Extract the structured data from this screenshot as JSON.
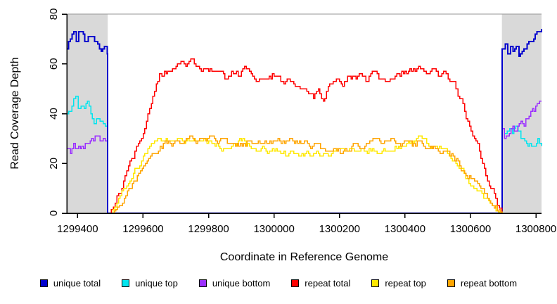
{
  "chart_data": {
    "type": "line",
    "title": "",
    "xlabel": "Coordinate in Reference Genome",
    "ylabel": "Read Coverage Depth",
    "xlim": [
      1299367,
      1300817
    ],
    "ylim": [
      0,
      80
    ],
    "x_ticks": [
      1299400,
      1299600,
      1299800,
      1300000,
      1300200,
      1300400,
      1300600,
      1300800
    ],
    "y_ticks": [
      0,
      20,
      40,
      60,
      80
    ],
    "grid": false,
    "legend_position": "bottom",
    "plot_background": "#ffffff",
    "shaded_region_color": "#d9d9d9",
    "top_rule_color": "#969696",
    "axis_color": "#000000",
    "shaded_regions": [
      {
        "x0": 1299367,
        "x1": 1299492
      },
      {
        "x0": 1300696,
        "x1": 1300817
      }
    ],
    "series": [
      {
        "name": "unique total",
        "color": "#0000CD",
        "jitter": 2,
        "points": [
          [
            1299367,
            66
          ],
          [
            1299378,
            71
          ],
          [
            1299388,
            73
          ],
          [
            1299396,
            70
          ],
          [
            1299404,
            73
          ],
          [
            1299412,
            72
          ],
          [
            1299422,
            68
          ],
          [
            1299432,
            70
          ],
          [
            1299442,
            70
          ],
          [
            1299452,
            67
          ],
          [
            1299462,
            68
          ],
          [
            1299472,
            66
          ],
          [
            1299482,
            67
          ],
          [
            1299491,
            65
          ],
          [
            1299492,
            0
          ],
          [
            1300696,
            0
          ],
          [
            1300697,
            66
          ],
          [
            1300706,
            69
          ],
          [
            1300714,
            66
          ],
          [
            1300722,
            69
          ],
          [
            1300730,
            67
          ],
          [
            1300740,
            69
          ],
          [
            1300748,
            64
          ],
          [
            1300758,
            66
          ],
          [
            1300768,
            68
          ],
          [
            1300778,
            71
          ],
          [
            1300788,
            70
          ],
          [
            1300798,
            72
          ],
          [
            1300808,
            73
          ],
          [
            1300817,
            75
          ]
        ]
      },
      {
        "name": "unique top",
        "color": "#00E5EE",
        "jitter": 2,
        "points": [
          [
            1299367,
            40
          ],
          [
            1299378,
            43
          ],
          [
            1299388,
            47
          ],
          [
            1299394,
            48
          ],
          [
            1299402,
            44
          ],
          [
            1299410,
            45
          ],
          [
            1299420,
            43
          ],
          [
            1299430,
            44
          ],
          [
            1299440,
            41
          ],
          [
            1299450,
            38
          ],
          [
            1299458,
            39
          ],
          [
            1299468,
            36
          ],
          [
            1299478,
            37
          ],
          [
            1299491,
            33
          ],
          [
            1299492,
            0
          ],
          [
            1300696,
            0
          ],
          [
            1300697,
            34
          ],
          [
            1300704,
            31
          ],
          [
            1300712,
            33
          ],
          [
            1300720,
            35
          ],
          [
            1300728,
            32
          ],
          [
            1300738,
            34
          ],
          [
            1300746,
            31
          ],
          [
            1300754,
            28
          ],
          [
            1300766,
            29
          ],
          [
            1300776,
            28
          ],
          [
            1300786,
            29
          ],
          [
            1300796,
            28
          ],
          [
            1300806,
            30
          ],
          [
            1300817,
            28
          ]
        ]
      },
      {
        "name": "unique bottom",
        "color": "#9B30FF",
        "jitter": 1,
        "points": [
          [
            1299367,
            26
          ],
          [
            1299378,
            25
          ],
          [
            1299388,
            27
          ],
          [
            1299398,
            25
          ],
          [
            1299408,
            26
          ],
          [
            1299418,
            26
          ],
          [
            1299428,
            28
          ],
          [
            1299438,
            28
          ],
          [
            1299448,
            29
          ],
          [
            1299458,
            30
          ],
          [
            1299468,
            29
          ],
          [
            1299478,
            31
          ],
          [
            1299491,
            29
          ],
          [
            1299492,
            0
          ],
          [
            1300696,
            0
          ],
          [
            1300697,
            34
          ],
          [
            1300704,
            31
          ],
          [
            1300714,
            32
          ],
          [
            1300724,
            34
          ],
          [
            1300734,
            33
          ],
          [
            1300744,
            35
          ],
          [
            1300754,
            37
          ],
          [
            1300764,
            36
          ],
          [
            1300774,
            39
          ],
          [
            1300784,
            41
          ],
          [
            1300794,
            40
          ],
          [
            1300804,
            43
          ],
          [
            1300817,
            45
          ]
        ]
      },
      {
        "name": "repeat total",
        "color": "#FF0000",
        "jitter": 1,
        "points": [
          [
            1299367,
            0
          ],
          [
            1299497,
            0
          ],
          [
            1299515,
            4
          ],
          [
            1299535,
            11
          ],
          [
            1299555,
            18
          ],
          [
            1299575,
            25
          ],
          [
            1299595,
            31
          ],
          [
            1299615,
            39
          ],
          [
            1299635,
            48
          ],
          [
            1299650,
            56
          ],
          [
            1299657,
            54
          ],
          [
            1299665,
            57
          ],
          [
            1299685,
            58
          ],
          [
            1299705,
            59
          ],
          [
            1299725,
            60
          ],
          [
            1299745,
            61
          ],
          [
            1299762,
            60
          ],
          [
            1299778,
            58
          ],
          [
            1299795,
            57
          ],
          [
            1299815,
            56
          ],
          [
            1299835,
            56
          ],
          [
            1299855,
            55
          ],
          [
            1299875,
            57
          ],
          [
            1299895,
            56
          ],
          [
            1299910,
            58
          ],
          [
            1299925,
            56
          ],
          [
            1299945,
            54
          ],
          [
            1299965,
            55
          ],
          [
            1299985,
            55
          ],
          [
            1300005,
            56
          ],
          [
            1300025,
            52
          ],
          [
            1300045,
            53
          ],
          [
            1300065,
            50
          ],
          [
            1300085,
            49
          ],
          [
            1300105,
            48
          ],
          [
            1300120,
            46
          ],
          [
            1300135,
            49
          ],
          [
            1300150,
            46
          ],
          [
            1300165,
            50
          ],
          [
            1300180,
            52
          ],
          [
            1300195,
            53
          ],
          [
            1300210,
            52
          ],
          [
            1300225,
            54
          ],
          [
            1300245,
            54
          ],
          [
            1300265,
            55
          ],
          [
            1300285,
            54
          ],
          [
            1300305,
            56
          ],
          [
            1300325,
            55
          ],
          [
            1300345,
            54
          ],
          [
            1300365,
            55
          ],
          [
            1300385,
            55
          ],
          [
            1300405,
            57
          ],
          [
            1300425,
            58
          ],
          [
            1300442,
            59
          ],
          [
            1300458,
            58
          ],
          [
            1300472,
            56
          ],
          [
            1300488,
            57
          ],
          [
            1300502,
            56
          ],
          [
            1300518,
            57
          ],
          [
            1300532,
            55
          ],
          [
            1300548,
            53
          ],
          [
            1300562,
            48
          ],
          [
            1300582,
            41
          ],
          [
            1300602,
            34
          ],
          [
            1300622,
            27
          ],
          [
            1300642,
            18
          ],
          [
            1300662,
            10
          ],
          [
            1300682,
            4
          ],
          [
            1300696,
            0
          ],
          [
            1300817,
            0
          ]
        ]
      },
      {
        "name": "repeat top",
        "color": "#FFE800",
        "jitter": 1,
        "points": [
          [
            1299367,
            0
          ],
          [
            1299502,
            0
          ],
          [
            1299520,
            4
          ],
          [
            1299540,
            9
          ],
          [
            1299560,
            14
          ],
          [
            1299580,
            18
          ],
          [
            1299600,
            22
          ],
          [
            1299620,
            26
          ],
          [
            1299640,
            29
          ],
          [
            1299660,
            29
          ],
          [
            1299680,
            30
          ],
          [
            1299700,
            30
          ],
          [
            1299720,
            29
          ],
          [
            1299740,
            30
          ],
          [
            1299760,
            30
          ],
          [
            1299780,
            29
          ],
          [
            1299800,
            28
          ],
          [
            1299820,
            27
          ],
          [
            1299840,
            26
          ],
          [
            1299860,
            27
          ],
          [
            1299880,
            28
          ],
          [
            1299900,
            29
          ],
          [
            1299920,
            28
          ],
          [
            1299940,
            26
          ],
          [
            1299960,
            26
          ],
          [
            1299980,
            25
          ],
          [
            1300000,
            26
          ],
          [
            1300020,
            25
          ],
          [
            1300040,
            24
          ],
          [
            1300060,
            25
          ],
          [
            1300080,
            24
          ],
          [
            1300100,
            24
          ],
          [
            1300120,
            23
          ],
          [
            1300140,
            24
          ],
          [
            1300160,
            23
          ],
          [
            1300180,
            24
          ],
          [
            1300200,
            25
          ],
          [
            1300220,
            26
          ],
          [
            1300240,
            25
          ],
          [
            1300260,
            26
          ],
          [
            1300280,
            25
          ],
          [
            1300300,
            26
          ],
          [
            1300320,
            25
          ],
          [
            1300340,
            26
          ],
          [
            1300360,
            26
          ],
          [
            1300380,
            27
          ],
          [
            1300400,
            28
          ],
          [
            1300420,
            29
          ],
          [
            1300440,
            30
          ],
          [
            1300452,
            30
          ],
          [
            1300466,
            28
          ],
          [
            1300480,
            27
          ],
          [
            1300500,
            26
          ],
          [
            1300520,
            25
          ],
          [
            1300540,
            23
          ],
          [
            1300560,
            20
          ],
          [
            1300580,
            16
          ],
          [
            1300600,
            12
          ],
          [
            1300620,
            9
          ],
          [
            1300640,
            6
          ],
          [
            1300660,
            3
          ],
          [
            1300678,
            1
          ],
          [
            1300692,
            0
          ],
          [
            1300817,
            0
          ]
        ]
      },
      {
        "name": "repeat bottom",
        "color": "#FFA500",
        "jitter": 1,
        "points": [
          [
            1299367,
            0
          ],
          [
            1299507,
            0
          ],
          [
            1299527,
            3
          ],
          [
            1299547,
            7
          ],
          [
            1299567,
            11
          ],
          [
            1299587,
            15
          ],
          [
            1299607,
            19
          ],
          [
            1299627,
            23
          ],
          [
            1299647,
            26
          ],
          [
            1299667,
            28
          ],
          [
            1299687,
            28
          ],
          [
            1299707,
            29
          ],
          [
            1299727,
            29
          ],
          [
            1299747,
            30
          ],
          [
            1299767,
            29
          ],
          [
            1299787,
            29
          ],
          [
            1299807,
            30
          ],
          [
            1299827,
            29
          ],
          [
            1299847,
            29
          ],
          [
            1299867,
            27
          ],
          [
            1299887,
            27
          ],
          [
            1299907,
            27
          ],
          [
            1299927,
            28
          ],
          [
            1299947,
            29
          ],
          [
            1299967,
            29
          ],
          [
            1299987,
            29
          ],
          [
            1300007,
            30
          ],
          [
            1300027,
            29
          ],
          [
            1300047,
            30
          ],
          [
            1300067,
            29
          ],
          [
            1300087,
            28
          ],
          [
            1300107,
            27
          ],
          [
            1300127,
            27
          ],
          [
            1300147,
            26
          ],
          [
            1300167,
            26
          ],
          [
            1300187,
            26
          ],
          [
            1300207,
            25
          ],
          [
            1300227,
            26
          ],
          [
            1300247,
            27
          ],
          [
            1300267,
            27
          ],
          [
            1300287,
            28
          ],
          [
            1300307,
            29
          ],
          [
            1300327,
            28
          ],
          [
            1300347,
            28
          ],
          [
            1300367,
            29
          ],
          [
            1300387,
            28
          ],
          [
            1300407,
            28
          ],
          [
            1300427,
            27
          ],
          [
            1300447,
            28
          ],
          [
            1300467,
            27
          ],
          [
            1300487,
            26
          ],
          [
            1300507,
            25
          ],
          [
            1300527,
            24
          ],
          [
            1300547,
            22
          ],
          [
            1300567,
            19
          ],
          [
            1300587,
            16
          ],
          [
            1300607,
            13
          ],
          [
            1300627,
            10
          ],
          [
            1300647,
            7
          ],
          [
            1300667,
            4
          ],
          [
            1300682,
            2
          ],
          [
            1300697,
            0
          ],
          [
            1300817,
            0
          ]
        ]
      }
    ]
  }
}
